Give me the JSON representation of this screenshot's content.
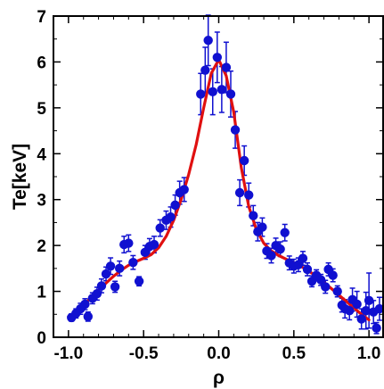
{
  "chart_data": {
    "type": "scatter",
    "title": "",
    "xlabel": "ρ",
    "ylabel": "Te[keV]",
    "xlim": [
      -1.1,
      1.1
    ],
    "ylim": [
      0,
      7
    ],
    "xticks": [
      -1.0,
      -0.5,
      0.0,
      0.5,
      1.0
    ],
    "xtick_labels": [
      "-1.0",
      "-0.5",
      "0.0",
      "0.5",
      "1.0"
    ],
    "yticks": [
      0,
      1,
      2,
      3,
      4,
      5,
      6,
      7
    ],
    "ytick_labels": [
      "0",
      "1",
      "2",
      "3",
      "4",
      "5",
      "6",
      "7"
    ],
    "grid": false,
    "legend": "none",
    "colors": {
      "points": "#1010d0",
      "fit": "#e01010"
    },
    "series": [
      {
        "kind": "scatter-errorbar",
        "points": [
          {
            "x": -0.98,
            "y": 0.43,
            "err": 0.08
          },
          {
            "x": -0.95,
            "y": 0.52,
            "err": 0.1
          },
          {
            "x": -0.92,
            "y": 0.62,
            "err": 0.12
          },
          {
            "x": -0.89,
            "y": 0.72,
            "err": 0.12
          },
          {
            "x": -0.87,
            "y": 0.45,
            "err": 0.1
          },
          {
            "x": -0.84,
            "y": 0.85,
            "err": 0.12
          },
          {
            "x": -0.81,
            "y": 0.95,
            "err": 0.14
          },
          {
            "x": -0.78,
            "y": 1.12,
            "err": 0.15
          },
          {
            "x": -0.75,
            "y": 1.38,
            "err": 0.15
          },
          {
            "x": -0.72,
            "y": 1.55,
            "err": 0.18
          },
          {
            "x": -0.69,
            "y": 1.1,
            "err": 0.12
          },
          {
            "x": -0.66,
            "y": 1.5,
            "err": 0.16
          },
          {
            "x": -0.63,
            "y": 2.02,
            "err": 0.18
          },
          {
            "x": -0.6,
            "y": 2.05,
            "err": 0.18
          },
          {
            "x": -0.57,
            "y": 1.63,
            "err": 0.15
          },
          {
            "x": -0.53,
            "y": 1.22,
            "err": 0.1
          },
          {
            "x": -0.49,
            "y": 1.85,
            "err": 0.15
          },
          {
            "x": -0.46,
            "y": 1.98,
            "err": 0.17
          },
          {
            "x": -0.43,
            "y": 2.02,
            "err": 0.18
          },
          {
            "x": -0.39,
            "y": 2.38,
            "err": 0.18
          },
          {
            "x": -0.35,
            "y": 2.55,
            "err": 0.2
          },
          {
            "x": -0.32,
            "y": 2.62,
            "err": 0.22
          },
          {
            "x": -0.29,
            "y": 2.88,
            "err": 0.22
          },
          {
            "x": -0.26,
            "y": 3.15,
            "err": 0.25
          },
          {
            "x": -0.23,
            "y": 3.22,
            "err": 0.26
          },
          {
            "x": -0.12,
            "y": 5.3,
            "err": 0.45
          },
          {
            "x": -0.09,
            "y": 5.82,
            "err": 0.5
          },
          {
            "x": -0.07,
            "y": 6.47,
            "err": 0.55
          },
          {
            "x": -0.04,
            "y": 5.35,
            "err": 0.5
          },
          {
            "x": -0.01,
            "y": 6.1,
            "err": 0.55
          },
          {
            "x": 0.02,
            "y": 5.4,
            "err": 0.5
          },
          {
            "x": 0.05,
            "y": 5.88,
            "err": 0.55
          },
          {
            "x": 0.08,
            "y": 5.3,
            "err": 0.5
          },
          {
            "x": 0.11,
            "y": 4.52,
            "err": 0.4
          },
          {
            "x": 0.14,
            "y": 3.15,
            "err": 0.28
          },
          {
            "x": 0.17,
            "y": 3.85,
            "err": 0.32
          },
          {
            "x": 0.2,
            "y": 3.1,
            "err": 0.26
          },
          {
            "x": 0.23,
            "y": 2.65,
            "err": 0.22
          },
          {
            "x": 0.26,
            "y": 2.3,
            "err": 0.2
          },
          {
            "x": 0.29,
            "y": 2.4,
            "err": 0.2
          },
          {
            "x": 0.32,
            "y": 1.88,
            "err": 0.16
          },
          {
            "x": 0.35,
            "y": 1.78,
            "err": 0.16
          },
          {
            "x": 0.38,
            "y": 2.0,
            "err": 0.16
          },
          {
            "x": 0.41,
            "y": 1.92,
            "err": 0.16
          },
          {
            "x": 0.44,
            "y": 2.28,
            "err": 0.18
          },
          {
            "x": 0.47,
            "y": 1.62,
            "err": 0.15
          },
          {
            "x": 0.5,
            "y": 1.55,
            "err": 0.15
          },
          {
            "x": 0.53,
            "y": 1.58,
            "err": 0.15
          },
          {
            "x": 0.56,
            "y": 1.72,
            "err": 0.15
          },
          {
            "x": 0.59,
            "y": 1.48,
            "err": 0.14
          },
          {
            "x": 0.62,
            "y": 1.22,
            "err": 0.12
          },
          {
            "x": 0.65,
            "y": 1.35,
            "err": 0.12
          },
          {
            "x": 0.68,
            "y": 1.25,
            "err": 0.12
          },
          {
            "x": 0.71,
            "y": 1.1,
            "err": 0.14
          },
          {
            "x": 0.73,
            "y": 1.48,
            "err": 0.14
          },
          {
            "x": 0.76,
            "y": 1.35,
            "err": 0.14
          },
          {
            "x": 0.79,
            "y": 1.0,
            "err": 0.12
          },
          {
            "x": 0.82,
            "y": 0.7,
            "err": 0.15
          },
          {
            "x": 0.84,
            "y": 0.62,
            "err": 0.2
          },
          {
            "x": 0.87,
            "y": 0.58,
            "err": 0.2
          },
          {
            "x": 0.89,
            "y": 0.82,
            "err": 0.25
          },
          {
            "x": 0.92,
            "y": 0.72,
            "err": 0.28
          },
          {
            "x": 0.95,
            "y": 0.4,
            "err": 0.22
          },
          {
            "x": 0.98,
            "y": 0.58,
            "err": 0.4
          },
          {
            "x": 1.0,
            "y": 0.8,
            "err": 0.6
          },
          {
            "x": 1.03,
            "y": 0.55,
            "err": 0.25
          },
          {
            "x": 1.05,
            "y": 0.2,
            "err": 0.12
          },
          {
            "x": 1.07,
            "y": 0.62,
            "err": 0.25
          }
        ]
      },
      {
        "kind": "line",
        "x": [
          -1.0,
          -0.95,
          -0.9,
          -0.85,
          -0.8,
          -0.75,
          -0.7,
          -0.65,
          -0.6,
          -0.55,
          -0.5,
          -0.45,
          -0.4,
          -0.35,
          -0.3,
          -0.25,
          -0.2,
          -0.15,
          -0.1,
          -0.05,
          0.0,
          0.05,
          0.1,
          0.15,
          0.2,
          0.25,
          0.3,
          0.35,
          0.4,
          0.45,
          0.5,
          0.55,
          0.6,
          0.65,
          0.7,
          0.75,
          0.8,
          0.85,
          0.9,
          0.95,
          1.0
        ],
        "y": [
          0.45,
          0.55,
          0.7,
          0.86,
          1.02,
          1.18,
          1.33,
          1.46,
          1.57,
          1.65,
          1.72,
          1.8,
          1.95,
          2.2,
          2.55,
          3.0,
          3.55,
          4.2,
          5.0,
          5.75,
          6.05,
          5.7,
          4.9,
          3.7,
          2.85,
          2.35,
          2.05,
          1.88,
          1.78,
          1.7,
          1.62,
          1.54,
          1.44,
          1.33,
          1.2,
          1.06,
          0.92,
          0.78,
          0.64,
          0.5,
          0.38
        ]
      }
    ]
  }
}
